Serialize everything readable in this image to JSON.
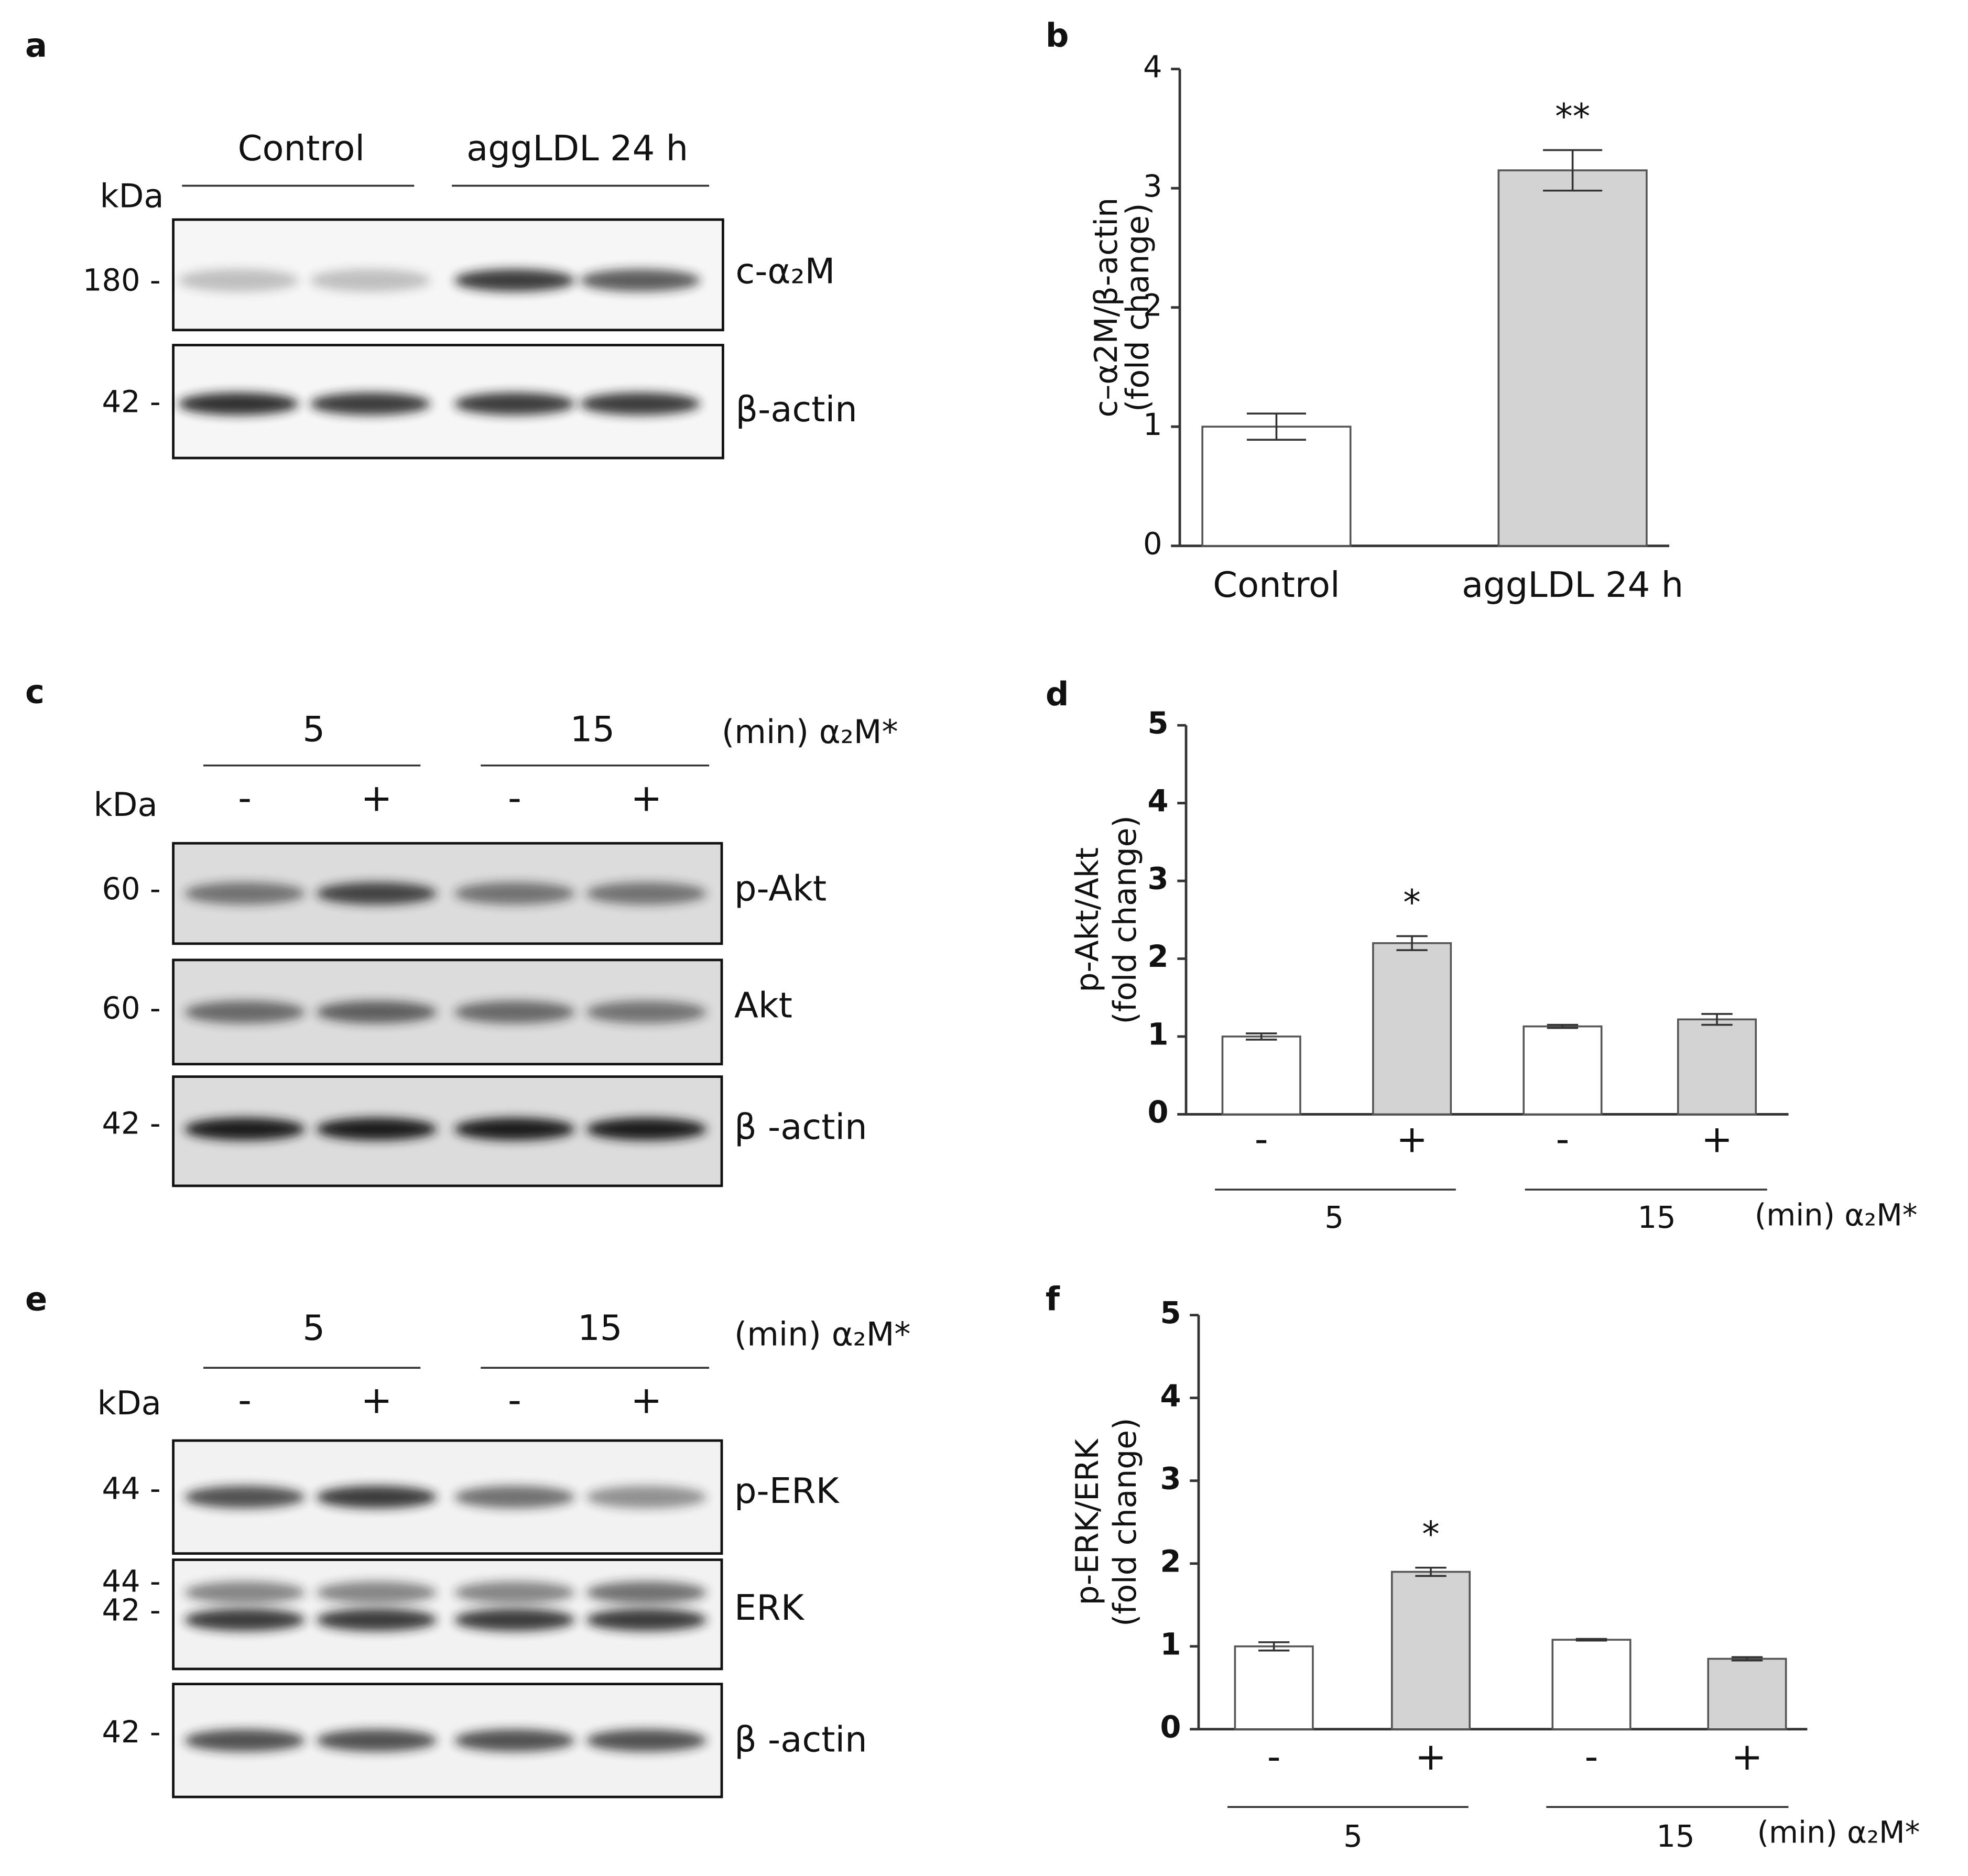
{
  "blots": [
    {
      "panel": "a",
      "kda": "kDa",
      "groups": [
        "Control",
        "aggLDL 24 h"
      ],
      "rows": [
        {
          "markers": [
            "180 -"
          ],
          "name": "c-α₂M"
        },
        {
          "markers": [
            "42 -"
          ],
          "name": "β-actin"
        }
      ]
    },
    {
      "panel": "c",
      "kda": "kDa",
      "groups": [
        "5",
        "15"
      ],
      "treatment": "(min) α₂M*",
      "lanes": [
        "-",
        "+",
        "-",
        "+"
      ],
      "rows": [
        {
          "markers": [
            "60 -"
          ],
          "name": "p-Akt"
        },
        {
          "markers": [
            "60 -"
          ],
          "name": "Akt"
        },
        {
          "markers": [
            "42 -"
          ],
          "name": "β -actin"
        }
      ]
    },
    {
      "panel": "e",
      "kda": "kDa",
      "groups": [
        "5",
        "15"
      ],
      "treatment": "(min) α₂M*",
      "lanes": [
        "-",
        "+",
        "-",
        "+"
      ],
      "rows": [
        {
          "markers": [
            "44 -"
          ],
          "name": "p-ERK"
        },
        {
          "markers": [
            "44 -",
            "42 -"
          ],
          "name": "ERK"
        },
        {
          "markers": [
            "42 -"
          ],
          "name": "β -actin"
        }
      ]
    }
  ],
  "chart_data": [
    {
      "type": "bar",
      "panel": "b",
      "ylabel": [
        "c–α2M/β-actin",
        "(fold change)"
      ],
      "categories": [
        "Control",
        "aggLDL 24 h"
      ],
      "values": [
        1.0,
        3.15
      ],
      "errors": [
        0.11,
        0.17
      ],
      "significance": [
        null,
        "**"
      ],
      "colors": [
        "#ffffff",
        "#d3d3d3"
      ],
      "ylim": [
        0,
        4
      ],
      "yticks": [
        0,
        1,
        2,
        3,
        4
      ]
    },
    {
      "type": "bar",
      "panel": "d",
      "ylabel": [
        "p-Akt/Akt",
        "(fold change)"
      ],
      "categories": [
        "-",
        "+",
        "-",
        "+"
      ],
      "values": [
        1.0,
        2.2,
        1.13,
        1.22
      ],
      "errors": [
        0.04,
        0.09,
        0.02,
        0.07
      ],
      "significance": [
        null,
        "*",
        null,
        null
      ],
      "colors": [
        "#ffffff",
        "#d3d3d3",
        "#ffffff",
        "#d3d3d3"
      ],
      "groups": [
        "5",
        "15"
      ],
      "group_label": "(min) α₂M*",
      "ylim": [
        0,
        5
      ],
      "yticks": [
        0,
        1,
        2,
        3,
        4,
        5
      ]
    },
    {
      "type": "bar",
      "panel": "f",
      "ylabel": [
        "p-ERK/ERK",
        "(fold change)"
      ],
      "categories": [
        "-",
        "+",
        "-",
        "+"
      ],
      "values": [
        1.0,
        1.9,
        1.08,
        0.85
      ],
      "errors": [
        0.05,
        0.05,
        0.01,
        0.02
      ],
      "significance": [
        null,
        "*",
        null,
        null
      ],
      "colors": [
        "#ffffff",
        "#d3d3d3",
        "#ffffff",
        "#d3d3d3"
      ],
      "groups": [
        "5",
        "15"
      ],
      "group_label": "(min) α₂M*",
      "ylim": [
        0,
        5
      ],
      "yticks": [
        0,
        1,
        2,
        3,
        4,
        5
      ]
    }
  ]
}
